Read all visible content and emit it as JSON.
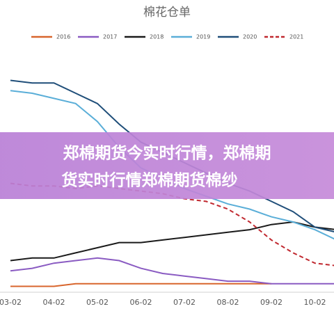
{
  "chart_data": {
    "type": "line",
    "title": "棉花仓单",
    "categories": [
      "03-02",
      null,
      "04-02",
      null,
      "05-02",
      null,
      "06-02",
      null,
      "07-02",
      null,
      "08-02",
      null,
      "09-02",
      null,
      "10-02",
      null
    ],
    "series": [
      {
        "name": "2016",
        "color": "#d8652c",
        "style": "solid",
        "values": [
          5,
          5,
          5,
          6,
          6,
          6,
          6,
          6,
          6,
          6,
          6,
          6,
          6,
          null,
          null,
          null
        ]
      },
      {
        "name": "2017",
        "color": "#8a5bc2",
        "style": "solid",
        "values": [
          11,
          12,
          14,
          15,
          16,
          15,
          12,
          10,
          9,
          8,
          7,
          7,
          6,
          6,
          6,
          6
        ]
      },
      {
        "name": "2018",
        "color": "#1a1a1a",
        "style": "solid",
        "values": [
          15,
          16,
          16,
          18,
          20,
          22,
          22,
          23,
          24,
          25,
          26,
          27,
          29,
          30,
          28,
          27
        ]
      },
      {
        "name": "2019",
        "color": "#5aaed8",
        "style": "solid",
        "values": [
          81,
          80,
          78,
          76,
          69,
          59,
          51,
          47,
          43,
          40,
          37,
          35,
          32,
          30,
          27,
          23
        ]
      },
      {
        "name": "2020",
        "color": "#1f4e79",
        "style": "solid",
        "values": [
          85,
          84,
          84,
          80,
          76,
          68,
          61,
          57,
          53,
          49,
          45,
          42,
          38,
          34,
          28,
          26
        ]
      },
      {
        "name": "2021",
        "color": "#c0282f",
        "style": "dashed",
        "values": [
          45,
          44,
          44,
          43,
          44,
          43,
          42,
          41,
          39,
          38,
          35,
          30,
          23,
          18,
          14,
          13
        ]
      }
    ],
    "ylim": [
      0,
      100
    ]
  },
  "banner": {
    "lines": [
      "郑棉期货今实时行情，郑棉期",
      "货实时行情郑棉期货棉纱"
    ]
  }
}
